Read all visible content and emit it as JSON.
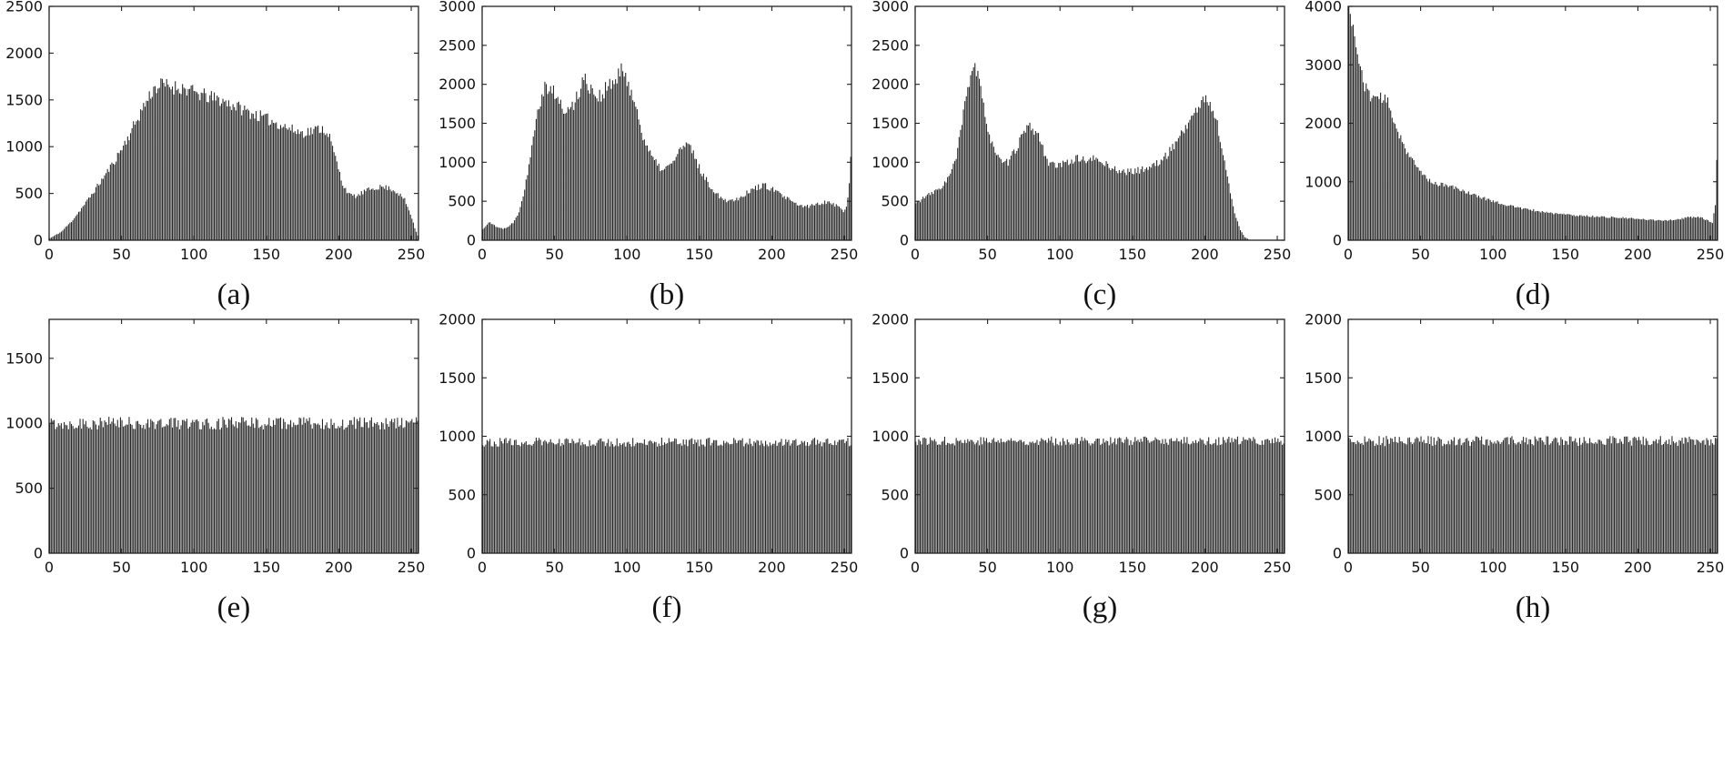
{
  "figure": {
    "background": "#ffffff",
    "description": "Grid of eight grayscale image histograms: top row original image histograms (a)-(d), bottom row equalized flat histograms (e)-(h)."
  },
  "colors": {
    "bar": "#262626",
    "axis": "#222222",
    "tick_label": "#111111"
  },
  "chart_data": [
    {
      "type": "bar",
      "label": "(a)",
      "bins": 256,
      "xlim": [
        0,
        255
      ],
      "ylim": [
        0,
        2500
      ],
      "xticks": [
        0,
        50,
        100,
        150,
        200,
        250
      ],
      "yticks": [
        0,
        500,
        1000,
        1500,
        2000,
        2500
      ],
      "noise": 0.05,
      "seed": 11,
      "envelope": [
        [
          0,
          20
        ],
        [
          8,
          90
        ],
        [
          15,
          200
        ],
        [
          25,
          400
        ],
        [
          35,
          620
        ],
        [
          45,
          850
        ],
        [
          55,
          1120
        ],
        [
          65,
          1430
        ],
        [
          72,
          1620
        ],
        [
          78,
          1665
        ],
        [
          85,
          1640
        ],
        [
          92,
          1630
        ],
        [
          100,
          1580
        ],
        [
          110,
          1530
        ],
        [
          118,
          1500
        ],
        [
          128,
          1440
        ],
        [
          138,
          1370
        ],
        [
          148,
          1310
        ],
        [
          158,
          1250
        ],
        [
          168,
          1180
        ],
        [
          175,
          1150
        ],
        [
          182,
          1170
        ],
        [
          188,
          1200
        ],
        [
          193,
          1150
        ],
        [
          198,
          880
        ],
        [
          203,
          600
        ],
        [
          208,
          480
        ],
        [
          213,
          470
        ],
        [
          218,
          520
        ],
        [
          224,
          555
        ],
        [
          230,
          570
        ],
        [
          236,
          555
        ],
        [
          241,
          510
        ],
        [
          246,
          430
        ],
        [
          250,
          280
        ],
        [
          253,
          130
        ],
        [
          255,
          50
        ]
      ]
    },
    {
      "type": "bar",
      "label": "(b)",
      "bins": 256,
      "xlim": [
        0,
        255
      ],
      "ylim": [
        0,
        3000
      ],
      "xticks": [
        0,
        50,
        100,
        150,
        200,
        250
      ],
      "yticks": [
        0,
        500,
        1000,
        1500,
        2000,
        2500,
        3000
      ],
      "noise": 0.06,
      "seed": 22,
      "envelope": [
        [
          0,
          140
        ],
        [
          4,
          230
        ],
        [
          8,
          190
        ],
        [
          14,
          150
        ],
        [
          18,
          170
        ],
        [
          22,
          250
        ],
        [
          26,
          420
        ],
        [
          30,
          750
        ],
        [
          34,
          1250
        ],
        [
          38,
          1700
        ],
        [
          42,
          1950
        ],
        [
          46,
          2000
        ],
        [
          50,
          1880
        ],
        [
          54,
          1720
        ],
        [
          58,
          1650
        ],
        [
          62,
          1700
        ],
        [
          66,
          1900
        ],
        [
          70,
          2060
        ],
        [
          74,
          2000
        ],
        [
          78,
          1870
        ],
        [
          82,
          1850
        ],
        [
          86,
          1950
        ],
        [
          90,
          2000
        ],
        [
          94,
          2100
        ],
        [
          97,
          2160
        ],
        [
          100,
          2080
        ],
        [
          104,
          1850
        ],
        [
          108,
          1550
        ],
        [
          112,
          1300
        ],
        [
          116,
          1100
        ],
        [
          120,
          980
        ],
        [
          125,
          900
        ],
        [
          130,
          960
        ],
        [
          134,
          1080
        ],
        [
          138,
          1190
        ],
        [
          142,
          1210
        ],
        [
          146,
          1120
        ],
        [
          150,
          930
        ],
        [
          154,
          790
        ],
        [
          158,
          690
        ],
        [
          162,
          600
        ],
        [
          166,
          540
        ],
        [
          170,
          510
        ],
        [
          174,
          520
        ],
        [
          178,
          550
        ],
        [
          183,
          610
        ],
        [
          188,
          660
        ],
        [
          193,
          700
        ],
        [
          197,
          690
        ],
        [
          201,
          650
        ],
        [
          206,
          590
        ],
        [
          211,
          530
        ],
        [
          215,
          480
        ],
        [
          219,
          450
        ],
        [
          223,
          430
        ],
        [
          227,
          440
        ],
        [
          231,
          460
        ],
        [
          235,
          480
        ],
        [
          239,
          500
        ],
        [
          243,
          470
        ],
        [
          247,
          420
        ],
        [
          250,
          380
        ],
        [
          252,
          420
        ],
        [
          254,
          700
        ],
        [
          255,
          1050
        ]
      ]
    },
    {
      "type": "bar",
      "label": "(c)",
      "bins": 256,
      "xlim": [
        0,
        255
      ],
      "ylim": [
        0,
        3000
      ],
      "xticks": [
        0,
        50,
        100,
        150,
        200,
        250
      ],
      "yticks": [
        0,
        500,
        1000,
        1500,
        2000,
        2500,
        3000
      ],
      "noise": 0.05,
      "seed": 33,
      "envelope": [
        [
          0,
          470
        ],
        [
          5,
          540
        ],
        [
          10,
          590
        ],
        [
          15,
          640
        ],
        [
          20,
          730
        ],
        [
          24,
          850
        ],
        [
          28,
          1050
        ],
        [
          32,
          1500
        ],
        [
          36,
          1950
        ],
        [
          39,
          2230
        ],
        [
          42,
          2180
        ],
        [
          45,
          1900
        ],
        [
          48,
          1600
        ],
        [
          52,
          1300
        ],
        [
          56,
          1100
        ],
        [
          60,
          970
        ],
        [
          64,
          1000
        ],
        [
          68,
          1120
        ],
        [
          72,
          1280
        ],
        [
          76,
          1400
        ],
        [
          80,
          1450
        ],
        [
          84,
          1380
        ],
        [
          88,
          1180
        ],
        [
          92,
          1000
        ],
        [
          96,
          950
        ],
        [
          100,
          960
        ],
        [
          105,
          1000
        ],
        [
          110,
          1040
        ],
        [
          115,
          1050
        ],
        [
          120,
          1010
        ],
        [
          124,
          1050
        ],
        [
          128,
          1010
        ],
        [
          133,
          960
        ],
        [
          138,
          910
        ],
        [
          143,
          880
        ],
        [
          148,
          875
        ],
        [
          153,
          890
        ],
        [
          158,
          915
        ],
        [
          163,
          945
        ],
        [
          168,
          990
        ],
        [
          173,
          1070
        ],
        [
          178,
          1200
        ],
        [
          183,
          1340
        ],
        [
          188,
          1480
        ],
        [
          193,
          1620
        ],
        [
          197,
          1750
        ],
        [
          201,
          1800
        ],
        [
          205,
          1720
        ],
        [
          209,
          1480
        ],
        [
          213,
          1100
        ],
        [
          217,
          700
        ],
        [
          221,
          350
        ],
        [
          225,
          130
        ],
        [
          228,
          40
        ],
        [
          231,
          8
        ],
        [
          234,
          0
        ],
        [
          255,
          0
        ]
      ]
    },
    {
      "type": "bar",
      "label": "(d)",
      "bins": 256,
      "xlim": [
        0,
        255
      ],
      "ylim": [
        0,
        4000
      ],
      "xticks": [
        0,
        50,
        100,
        150,
        200,
        250
      ],
      "yticks": [
        0,
        1000,
        2000,
        3000,
        4000
      ],
      "noise": 0.04,
      "seed": 44,
      "envelope": [
        [
          0,
          4000
        ],
        [
          1,
          3980
        ],
        [
          3,
          3600
        ],
        [
          5,
          3300
        ],
        [
          7,
          3050
        ],
        [
          9,
          2850
        ],
        [
          11,
          2650
        ],
        [
          13,
          2520
        ],
        [
          16,
          2450
        ],
        [
          20,
          2460
        ],
        [
          24,
          2420
        ],
        [
          27,
          2350
        ],
        [
          29,
          2200
        ],
        [
          32,
          2000
        ],
        [
          36,
          1750
        ],
        [
          40,
          1530
        ],
        [
          44,
          1360
        ],
        [
          48,
          1220
        ],
        [
          52,
          1110
        ],
        [
          56,
          1020
        ],
        [
          60,
          970
        ],
        [
          66,
          940
        ],
        [
          72,
          910
        ],
        [
          78,
          860
        ],
        [
          85,
          790
        ],
        [
          92,
          730
        ],
        [
          100,
          670
        ],
        [
          108,
          610
        ],
        [
          116,
          565
        ],
        [
          124,
          525
        ],
        [
          132,
          495
        ],
        [
          140,
          465
        ],
        [
          148,
          445
        ],
        [
          156,
          425
        ],
        [
          164,
          415
        ],
        [
          172,
          405
        ],
        [
          180,
          395
        ],
        [
          188,
          385
        ],
        [
          196,
          370
        ],
        [
          204,
          355
        ],
        [
          212,
          345
        ],
        [
          220,
          340
        ],
        [
          228,
          355
        ],
        [
          234,
          385
        ],
        [
          240,
          400
        ],
        [
          245,
          380
        ],
        [
          249,
          330
        ],
        [
          252,
          300
        ],
        [
          254,
          600
        ],
        [
          255,
          1400
        ]
      ]
    },
    {
      "type": "bar",
      "label": "(e)",
      "bins": 256,
      "xlim": [
        0,
        255
      ],
      "ylim": [
        0,
        1800
      ],
      "xticks": [
        0,
        50,
        100,
        150,
        200,
        250
      ],
      "yticks": [
        0,
        500,
        1000,
        1500
      ],
      "noise": 0.05,
      "seed": 55,
      "envelope": [
        [
          0,
          1000
        ],
        [
          255,
          1000
        ]
      ]
    },
    {
      "type": "bar",
      "label": "(f)",
      "bins": 256,
      "xlim": [
        0,
        255
      ],
      "ylim": [
        0,
        2000
      ],
      "xticks": [
        0,
        50,
        100,
        150,
        200,
        250
      ],
      "yticks": [
        0,
        500,
        1000,
        1500,
        2000
      ],
      "noise": 0.04,
      "seed": 66,
      "envelope": [
        [
          0,
          950
        ],
        [
          255,
          950
        ]
      ]
    },
    {
      "type": "bar",
      "label": "(g)",
      "bins": 256,
      "xlim": [
        0,
        255
      ],
      "ylim": [
        0,
        2000
      ],
      "xticks": [
        0,
        50,
        100,
        150,
        200,
        250
      ],
      "yticks": [
        0,
        500,
        1000,
        1500,
        2000
      ],
      "noise": 0.04,
      "seed": 77,
      "envelope": [
        [
          0,
          960
        ],
        [
          255,
          960
        ]
      ]
    },
    {
      "type": "bar",
      "label": "(h)",
      "bins": 256,
      "xlim": [
        0,
        255
      ],
      "ylim": [
        0,
        2000
      ],
      "xticks": [
        0,
        50,
        100,
        150,
        200,
        250
      ],
      "yticks": [
        0,
        500,
        1000,
        1500,
        2000
      ],
      "noise": 0.045,
      "seed": 88,
      "envelope": [
        [
          0,
          960
        ],
        [
          255,
          960
        ]
      ]
    }
  ]
}
